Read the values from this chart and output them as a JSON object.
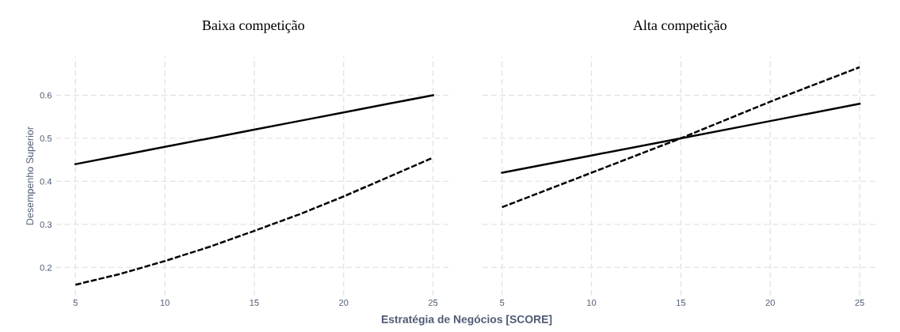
{
  "chart_data": [
    {
      "type": "line",
      "title": "Baixa competição",
      "xlabel": "Estratégia de Negócios [SCORE]",
      "ylabel": "Desempenho Superior",
      "xlim": [
        3.9,
        26
      ],
      "xticks": [
        5,
        10,
        15,
        20,
        25
      ],
      "ylim": [
        0.135,
        0.69
      ],
      "yticks": [
        0.2,
        0.3,
        0.4,
        0.5,
        0.6
      ],
      "grid": true,
      "tick_labels": true,
      "x": [
        5,
        7.5,
        10,
        12.5,
        15,
        17.5,
        20,
        22.5,
        25
      ],
      "series": [
        {
          "color": "#000000",
          "line_style": "solid",
          "values": [
            0.44,
            0.46,
            0.48,
            0.5,
            0.52,
            0.54,
            0.56,
            0.58,
            0.6
          ]
        },
        {
          "color": "#000000",
          "line_style": "dashed",
          "values": [
            0.16,
            0.185,
            0.215,
            0.248,
            0.285,
            0.323,
            0.365,
            0.41,
            0.455
          ]
        }
      ]
    },
    {
      "type": "line",
      "title": "Alta competição",
      "xlim": [
        3.9,
        26
      ],
      "xticks": [
        5,
        10,
        15,
        20,
        25
      ],
      "ylim": [
        0.135,
        0.69
      ],
      "yticks": [
        0.2,
        0.3,
        0.4,
        0.5,
        0.6
      ],
      "grid": true,
      "tick_labels": "x",
      "x": [
        5,
        10,
        15,
        20,
        25
      ],
      "series": [
        {
          "color": "#000000",
          "line_style": "solid",
          "values": [
            0.42,
            0.46,
            0.5,
            0.54,
            0.58
          ]
        },
        {
          "color": "#000000",
          "line_style": "dashed",
          "values": [
            0.34,
            0.42,
            0.5,
            0.585,
            0.665
          ]
        }
      ]
    }
  ]
}
